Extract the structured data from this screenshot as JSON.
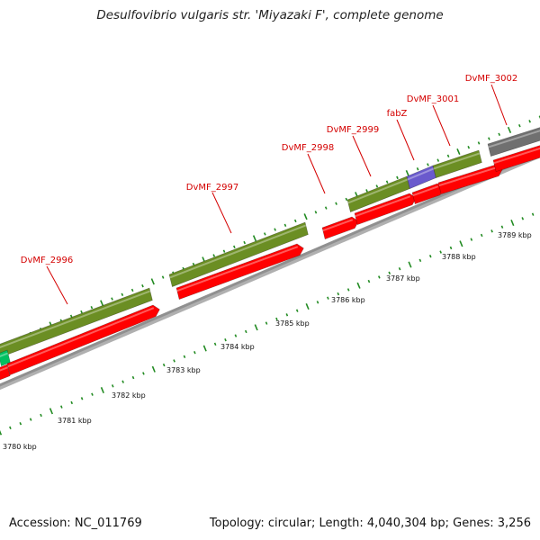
{
  "title": "Desulfovibrio vulgaris str. 'Miyazaki F', complete genome",
  "footer": {
    "accession": "Accession: NC_011769",
    "topology": "Topology: circular; Length: 4,040,304 bp; Genes: 3,256"
  },
  "colors": {
    "cds_forward": "#6b8e23",
    "cds_reverse": "#ff0000",
    "gene_label": "#d40000",
    "feature_purple": "#6a5acd",
    "feature_gray": "#707070",
    "feature_green_edge": "#00c060",
    "backbone": "#909090",
    "tick": "#228b22"
  },
  "kbp_labels": [
    "3780 kbp",
    "3781 kbp",
    "3782 kbp",
    "3783 kbp",
    "3784 kbp",
    "3785 kbp",
    "3786 kbp",
    "3787 kbp",
    "3788 kbp",
    "3789 kbp"
  ],
  "gene_labels": [
    "DvMF_2996",
    "DvMF_2997",
    "DvMF_2998",
    "DvMF_2999",
    "fabZ",
    "DvMF_3001",
    "DvMF_3002"
  ]
}
